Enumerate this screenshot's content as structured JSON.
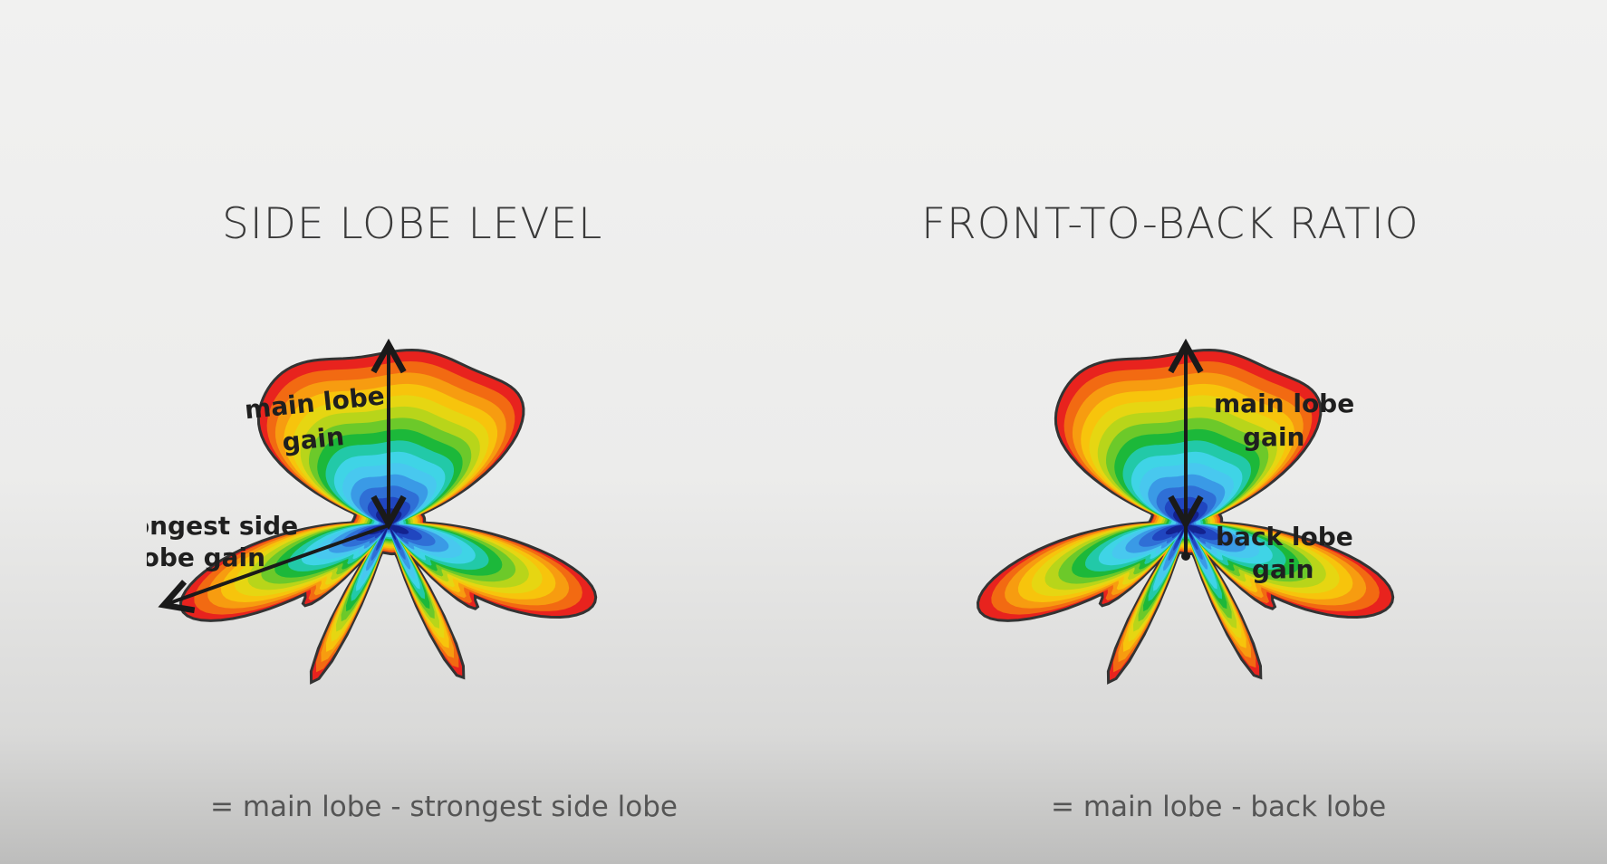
{
  "panels": [
    {
      "title": "SIDE LOBE LEVEL",
      "formula": "= main lobe - strongest side lobe",
      "annotations": {
        "main_gain_line1": "main lobe",
        "main_gain_line2": "gain",
        "second_line1": "strongest side",
        "second_line2": "lobe gain"
      }
    },
    {
      "title": "FRONT-TO-BACK RATIO",
      "formula": "= main lobe - back lobe",
      "annotations": {
        "main_gain_line1": "main lobe",
        "main_gain_line2": "gain",
        "second_line1": "back lobe",
        "second_line2": "gain"
      }
    }
  ],
  "colors": {
    "bands": [
      "#e8231e",
      "#f26a12",
      "#f79c10",
      "#f7c40c",
      "#e6d612",
      "#b8d51a",
      "#6cc92a",
      "#1cb83a",
      "#22c9a8",
      "#3fd4e6",
      "#48c8ef",
      "#3a9ae6",
      "#2f6fd6",
      "#2046c0",
      "#13228f"
    ],
    "outline": "#333333",
    "arrow": "#1a1a1a"
  }
}
